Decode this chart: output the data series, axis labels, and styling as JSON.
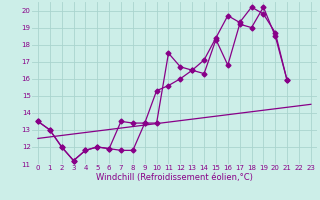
{
  "xlabel": "Windchill (Refroidissement éolien,°C)",
  "bg_color": "#cceee8",
  "grid_color": "#aad4ce",
  "line_color": "#880088",
  "xlim": [
    -0.5,
    23.5
  ],
  "ylim": [
    11,
    20.5
  ],
  "xticks": [
    0,
    1,
    2,
    3,
    4,
    5,
    6,
    7,
    8,
    9,
    10,
    11,
    12,
    13,
    14,
    15,
    16,
    17,
    18,
    19,
    20,
    21,
    22,
    23
  ],
  "yticks": [
    11,
    12,
    13,
    14,
    15,
    16,
    17,
    18,
    19,
    20
  ],
  "series1_x": [
    0,
    1,
    2,
    3,
    4,
    5,
    6,
    7,
    8,
    9,
    10,
    11,
    12,
    13,
    14,
    15,
    16,
    17,
    18,
    19,
    20,
    21
  ],
  "series1_y": [
    13.5,
    13.0,
    12.0,
    11.2,
    11.8,
    12.0,
    11.9,
    11.8,
    11.8,
    13.4,
    13.4,
    17.5,
    16.7,
    16.5,
    16.3,
    18.3,
    16.8,
    19.2,
    19.0,
    20.2,
    18.5,
    15.9
  ],
  "series2_x": [
    0,
    1,
    2,
    3,
    4,
    5,
    6,
    7,
    8,
    9,
    10,
    11,
    12,
    13,
    14,
    15,
    16,
    17,
    18,
    19,
    20,
    21
  ],
  "series2_y": [
    13.5,
    13.0,
    12.0,
    11.2,
    11.8,
    12.0,
    11.9,
    13.5,
    13.4,
    13.4,
    15.3,
    15.6,
    16.0,
    16.5,
    17.1,
    18.4,
    19.7,
    19.3,
    20.2,
    19.8,
    18.7,
    15.9
  ],
  "series3_x": [
    0,
    23
  ],
  "series3_y": [
    12.5,
    14.5
  ],
  "marker_size": 2.5,
  "line_width": 0.9,
  "tick_fontsize": 5,
  "xlabel_fontsize": 6
}
